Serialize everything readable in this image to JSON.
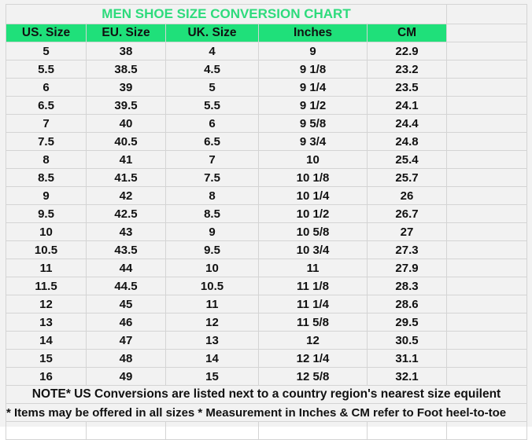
{
  "title": "MEN SHOE SIZE CONVERSION CHART",
  "colors": {
    "header_bg": "#1fe07a",
    "title_text": "#2ddb7c",
    "sheet_bg": "#f2f2f2"
  },
  "headers": [
    "US. Size",
    "EU. Size",
    "UK. Size",
    "Inches",
    "CM"
  ],
  "rows": [
    [
      "5",
      "38",
      "4",
      "9",
      "22.9"
    ],
    [
      "5.5",
      "38.5",
      "4.5",
      "9 1/8",
      "23.2"
    ],
    [
      "6",
      "39",
      "5",
      "9 1/4",
      "23.5"
    ],
    [
      "6.5",
      "39.5",
      "5.5",
      "9 1/2",
      "24.1"
    ],
    [
      "7",
      "40",
      "6",
      "9 5/8",
      "24.4"
    ],
    [
      "7.5",
      "40.5",
      "6.5",
      "9 3/4",
      "24.8"
    ],
    [
      "8",
      "41",
      "7",
      "10",
      "25.4"
    ],
    [
      "8.5",
      "41.5",
      "7.5",
      "10 1/8",
      "25.7"
    ],
    [
      "9",
      "42",
      "8",
      "10 1/4",
      "26"
    ],
    [
      "9.5",
      "42.5",
      "8.5",
      "10 1/2",
      "26.7"
    ],
    [
      "10",
      "43",
      "9",
      "10 5/8",
      "27"
    ],
    [
      "10.5",
      "43.5",
      "9.5",
      "10 3/4",
      "27.3"
    ],
    [
      "11",
      "44",
      "10",
      "11",
      "27.9"
    ],
    [
      "11.5",
      "44.5",
      "10.5",
      "11 1/8",
      "28.3"
    ],
    [
      "12",
      "45",
      "11",
      "11 1/4",
      "28.6"
    ],
    [
      "13",
      "46",
      "12",
      "11 5/8",
      "29.5"
    ],
    [
      "14",
      "47",
      "13",
      "12",
      "30.5"
    ],
    [
      "15",
      "48",
      "14",
      "12 1/4",
      "31.1"
    ],
    [
      "16",
      "49",
      "15",
      "12 5/8",
      "32.1"
    ]
  ],
  "note1": "NOTE* US Conversions are listed next to a country region's nearest size equilent",
  "note2": "* Items may be offered in all sizes * Measurement in Inches & CM refer to Foot heel-to-toe"
}
